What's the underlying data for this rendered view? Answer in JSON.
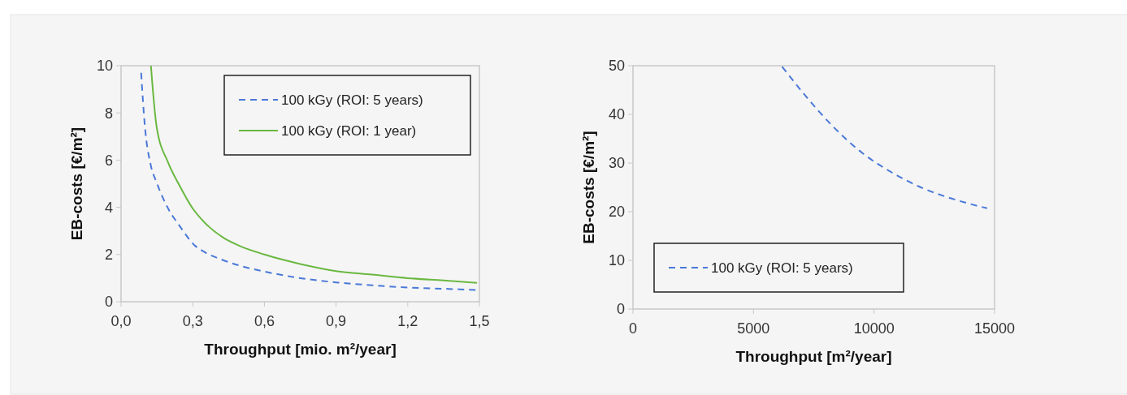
{
  "chart_data": [
    {
      "type": "line",
      "xlabel": "Throughput [mio. m²/year]",
      "ylabel": "EB-costs [€/m²]",
      "xlim": [
        0,
        1.5
      ],
      "ylim": [
        0,
        10
      ],
      "xticks": [
        {
          "value": 0,
          "label": "0,0"
        },
        {
          "value": 0.3,
          "label": "0,3"
        },
        {
          "value": 0.6,
          "label": "0,6"
        },
        {
          "value": 0.9,
          "label": "0,9"
        },
        {
          "value": 1.2,
          "label": "1,2"
        },
        {
          "value": 1.5,
          "label": "1,5"
        }
      ],
      "yticks": [
        0,
        2,
        4,
        6,
        8,
        10
      ],
      "grid": false,
      "legend": "top right",
      "marker": "none",
      "series": [
        {
          "name": "100 kGy (ROI: 5 years)",
          "color": "#4a78d8",
          "line_style": "dashed",
          "x": [
            0.084,
            0.1,
            0.124,
            0.149,
            0.197,
            0.246,
            0.307,
            0.35,
            0.417,
            0.5,
            0.6,
            0.75,
            0.9,
            1.05,
            1.2,
            1.35,
            1.49
          ],
          "values": [
            9.7,
            7.4,
            5.8,
            5.05,
            3.95,
            3.2,
            2.4,
            2.1,
            1.8,
            1.52,
            1.28,
            1.0,
            0.82,
            0.7,
            0.6,
            0.55,
            0.5
          ]
        },
        {
          "name": "100 kGy (ROI: 1 year)",
          "color": "#6ab841",
          "line_style": "solid",
          "x": [
            0.125,
            0.149,
            0.197,
            0.246,
            0.3,
            0.35,
            0.43,
            0.5,
            0.6,
            0.75,
            0.9,
            1.05,
            1.2,
            1.35,
            1.49
          ],
          "values": [
            10,
            7.4,
            5.9,
            4.9,
            3.95,
            3.35,
            2.7,
            2.35,
            2.0,
            1.6,
            1.3,
            1.15,
            1.0,
            0.9,
            0.8
          ]
        }
      ]
    },
    {
      "type": "line",
      "xlabel": "Throughput [m²/year]",
      "ylabel": "EB-costs [€/m²]",
      "xlim": [
        0,
        15000
      ],
      "ylim": [
        0,
        50
      ],
      "xticks": [
        0,
        5000,
        10000,
        15000
      ],
      "yticks": [
        0,
        10,
        20,
        30,
        40,
        50
      ],
      "grid": false,
      "legend": "bottom left",
      "marker": "none",
      "series": [
        {
          "name": "100 kGy (ROI: 5 years)",
          "color": "#4a78d8",
          "line_style": "dashed",
          "x": [
            6190,
            7075,
            8300,
            9530,
            10760,
            11990,
            13220,
            14690
          ],
          "values": [
            49.8,
            44.3,
            37.5,
            32,
            28,
            24.9,
            22.7,
            20.7
          ]
        }
      ]
    }
  ]
}
